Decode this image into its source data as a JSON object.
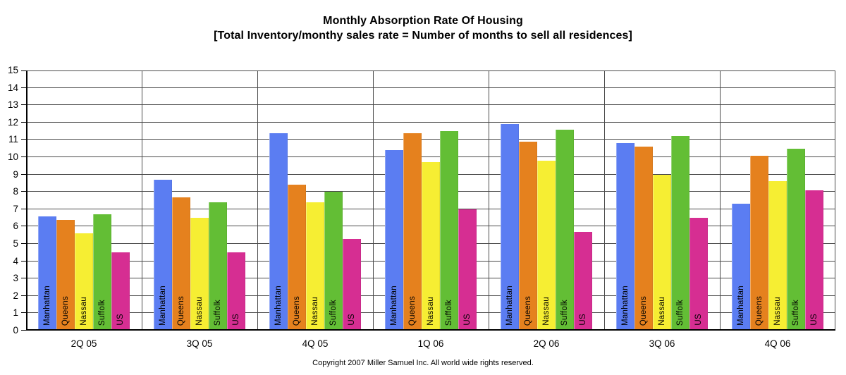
{
  "header": {
    "title_line1": "Monthly Absorption Rate Of Housing",
    "title_line2": "[Total Inventory/monthy sales rate = Number of months to sell all residences]"
  },
  "footer": {
    "copyright": "Copyright 2007 Miller Samuel Inc.  All world wide rights reserved."
  },
  "chart_data": {
    "type": "bar",
    "title": "Monthly Absorption Rate Of Housing",
    "subtitle": "[Total Inventory/monthy sales rate = Number of months to sell all residences]",
    "categories": [
      "2Q 05",
      "3Q 05",
      "4Q 05",
      "1Q 06",
      "2Q 06",
      "3Q 06",
      "4Q 06"
    ],
    "series": [
      {
        "name": "Manhattan",
        "color": "#5B7DF2",
        "values": [
          6.6,
          8.7,
          11.4,
          10.4,
          11.9,
          10.8,
          7.3
        ]
      },
      {
        "name": "Queens",
        "color": "#E5811E",
        "values": [
          6.4,
          7.7,
          8.4,
          11.4,
          10.9,
          10.6,
          10.1
        ]
      },
      {
        "name": "Nassau",
        "color": "#F6EE33",
        "values": [
          5.6,
          6.5,
          7.4,
          9.7,
          9.8,
          9.0,
          8.6
        ]
      },
      {
        "name": "Suffolk",
        "color": "#63BE35",
        "values": [
          6.7,
          7.4,
          8.0,
          11.5,
          11.6,
          11.2,
          10.5
        ]
      },
      {
        "name": "US",
        "color": "#D62E92",
        "values": [
          4.5,
          4.5,
          5.3,
          7.0,
          5.7,
          6.5,
          8.1
        ]
      }
    ],
    "ylabel": "",
    "xlabel": "",
    "ylim": [
      0,
      15
    ],
    "ytick_step": 1,
    "yticks": [
      0,
      1,
      2,
      3,
      4,
      5,
      6,
      7,
      8,
      9,
      10,
      11,
      12,
      13,
      14,
      15
    ],
    "grid": true,
    "legend_position": "none",
    "bar_labels": "series name written vertically inside each bar"
  },
  "colors": {
    "grid": "#4a4a4a",
    "axis": "#000000",
    "background": "#ffffff",
    "text": "#000000"
  }
}
